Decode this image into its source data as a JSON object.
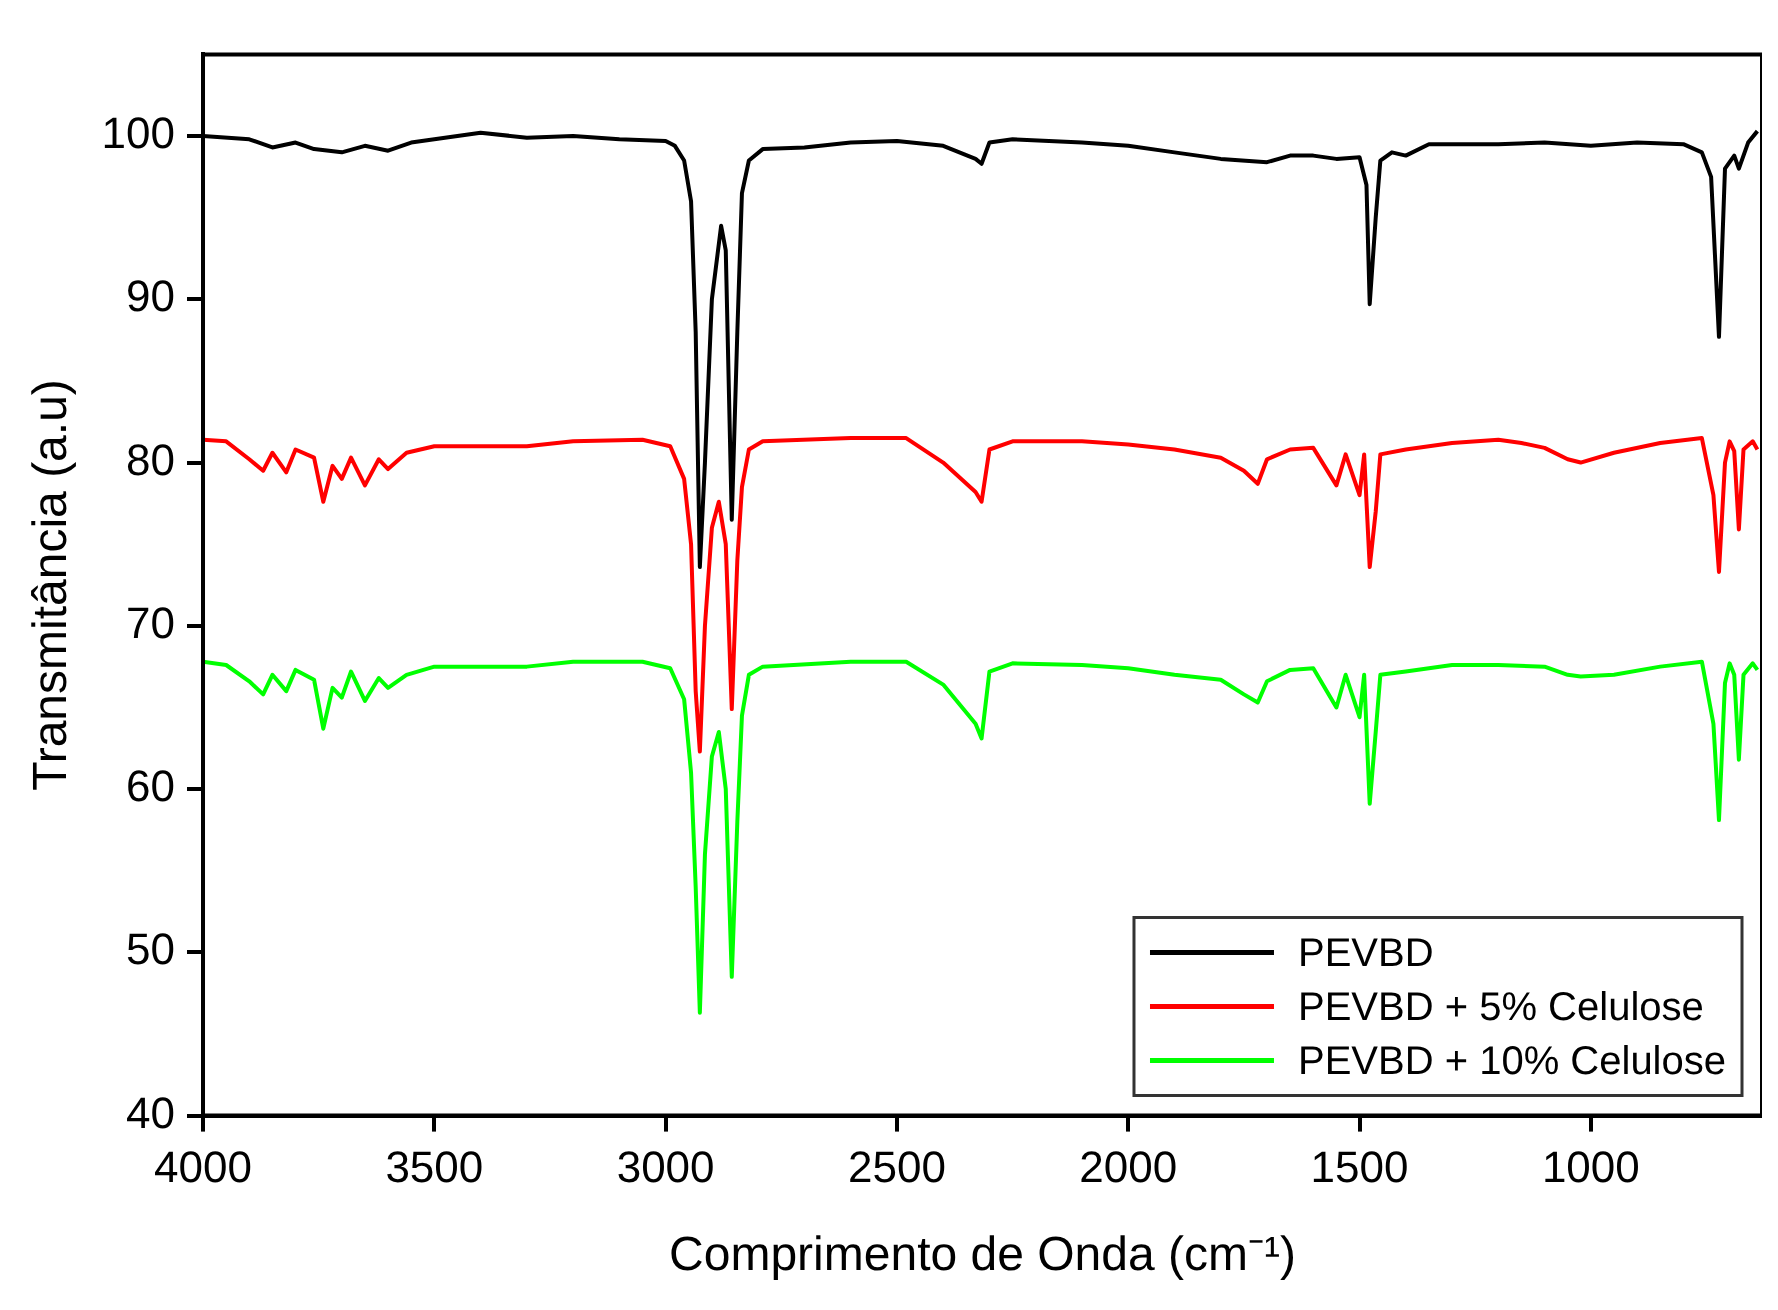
{
  "chart_data": {
    "type": "line",
    "xlabel": "Comprimento de Onda (cm⁻¹)",
    "ylabel": "Transmitância (a.u)",
    "xlim": [
      4000,
      630
    ],
    "xticks": [
      4000,
      3500,
      3000,
      2500,
      2000,
      1500,
      1000
    ],
    "ylim": [
      40,
      105
    ],
    "yticks": [
      40,
      50,
      60,
      70,
      80,
      90,
      100
    ],
    "grid": false,
    "legend": "bottom right",
    "marker": "none",
    "line_style": "solid",
    "series": [
      {
        "name": "PEVBD",
        "color": "#000000",
        "x": [
          4000,
          3900,
          3850,
          3800,
          3760,
          3700,
          3650,
          3600,
          3550,
          3500,
          3400,
          3300,
          3200,
          3100,
          3000,
          2980,
          2960,
          2945,
          2935,
          2926,
          2915,
          2900,
          2880,
          2870,
          2857,
          2845,
          2835,
          2820,
          2790,
          2700,
          2600,
          2500,
          2400,
          2330,
          2317,
          2300,
          2250,
          2100,
          2000,
          1900,
          1800,
          1700,
          1650,
          1600,
          1550,
          1500,
          1485,
          1478,
          1465,
          1455,
          1430,
          1400,
          1350,
          1200,
          1100,
          1000,
          900,
          800,
          760,
          740,
          723,
          710,
          690,
          680,
          660,
          640
        ],
        "values": [
          100,
          99.8,
          99.3,
          99.6,
          99.2,
          99.0,
          99.4,
          99.1,
          99.6,
          99.8,
          100.2,
          99.9,
          100.0,
          99.8,
          99.7,
          99.4,
          98.5,
          96,
          88,
          73.6,
          80,
          90,
          94.5,
          93,
          76.5,
          88,
          96.5,
          98.5,
          99.2,
          99.3,
          99.6,
          99.7,
          99.4,
          98.6,
          98.3,
          99.6,
          99.8,
          99.6,
          99.4,
          99.0,
          98.6,
          98.4,
          98.8,
          98.8,
          98.6,
          98.7,
          97,
          89.7,
          95,
          98.5,
          99.0,
          98.8,
          99.5,
          99.5,
          99.6,
          99.4,
          99.6,
          99.5,
          99.0,
          97.5,
          87.7,
          98.0,
          98.8,
          98.0,
          99.6,
          100.3
        ]
      },
      {
        "name": "PEVBD + 5% Celulose",
        "color": "#ff0000",
        "x": [
          4000,
          3950,
          3900,
          3870,
          3850,
          3820,
          3800,
          3760,
          3740,
          3720,
          3700,
          3680,
          3650,
          3620,
          3600,
          3560,
          3500,
          3400,
          3300,
          3200,
          3050,
          2990,
          2960,
          2945,
          2935,
          2926,
          2915,
          2900,
          2885,
          2870,
          2857,
          2845,
          2835,
          2820,
          2790,
          2600,
          2480,
          2400,
          2330,
          2317,
          2300,
          2250,
          2100,
          2000,
          1900,
          1800,
          1750,
          1720,
          1700,
          1650,
          1600,
          1550,
          1530,
          1500,
          1490,
          1478,
          1465,
          1455,
          1400,
          1300,
          1200,
          1150,
          1100,
          1050,
          1022,
          950,
          850,
          760,
          735,
          723,
          710,
          700,
          690,
          680,
          670,
          650,
          640
        ],
        "values": [
          81.4,
          81.3,
          80.2,
          79.5,
          80.6,
          79.4,
          80.8,
          80.3,
          77.6,
          79.8,
          79.0,
          80.3,
          78.6,
          80.2,
          79.6,
          80.6,
          81.0,
          81.0,
          81.0,
          81.3,
          81.4,
          81.0,
          79,
          75,
          66,
          62.3,
          70,
          76,
          77.6,
          75,
          64.9,
          74,
          78.5,
          80.8,
          81.3,
          81.5,
          81.5,
          80,
          78.2,
          77.6,
          80.8,
          81.3,
          81.3,
          81.1,
          80.8,
          80.3,
          79.5,
          78.7,
          80.2,
          80.8,
          80.9,
          78.6,
          80.5,
          78.0,
          80.5,
          73.6,
          77,
          80.5,
          80.8,
          81.2,
          81.4,
          81.2,
          80.9,
          80.2,
          80.0,
          80.6,
          81.2,
          81.5,
          78,
          73.3,
          80,
          81.3,
          80.7,
          75.9,
          80.8,
          81.3,
          80.8
        ]
      },
      {
        "name": "PEVBD + 10% Celulose",
        "color": "#00ff00",
        "x": [
          4000,
          3950,
          3900,
          3870,
          3850,
          3820,
          3800,
          3760,
          3740,
          3720,
          3700,
          3680,
          3650,
          3620,
          3600,
          3560,
          3500,
          3400,
          3300,
          3200,
          3050,
          2990,
          2960,
          2945,
          2935,
          2926,
          2915,
          2900,
          2885,
          2870,
          2857,
          2845,
          2835,
          2820,
          2790,
          2600,
          2480,
          2400,
          2330,
          2317,
          2300,
          2250,
          2100,
          2000,
          1900,
          1800,
          1750,
          1720,
          1700,
          1650,
          1600,
          1550,
          1530,
          1500,
          1490,
          1478,
          1465,
          1455,
          1400,
          1300,
          1200,
          1100,
          1050,
          1022,
          950,
          850,
          760,
          735,
          723,
          710,
          700,
          690,
          680,
          670,
          650,
          640
        ],
        "values": [
          67.8,
          67.6,
          66.6,
          65.8,
          67.0,
          66.0,
          67.3,
          66.7,
          63.7,
          66.2,
          65.6,
          67.2,
          65.4,
          66.8,
          66.2,
          67.0,
          67.5,
          67.5,
          67.5,
          67.8,
          67.8,
          67.4,
          65.5,
          61,
          54,
          46.3,
          56,
          62,
          63.5,
          60,
          48.5,
          58,
          64.5,
          67,
          67.5,
          67.8,
          67.8,
          66.4,
          64,
          63.1,
          67.2,
          67.7,
          67.6,
          67.4,
          67.0,
          66.7,
          65.8,
          65.3,
          66.6,
          67.3,
          67.4,
          65,
          67,
          64.4,
          67.0,
          59.1,
          63.5,
          67,
          67.2,
          67.6,
          67.6,
          67.5,
          67.0,
          66.9,
          67.0,
          67.5,
          67.8,
          64,
          58.1,
          66.5,
          67.7,
          67,
          61.8,
          67,
          67.7,
          67.3
        ]
      }
    ]
  }
}
